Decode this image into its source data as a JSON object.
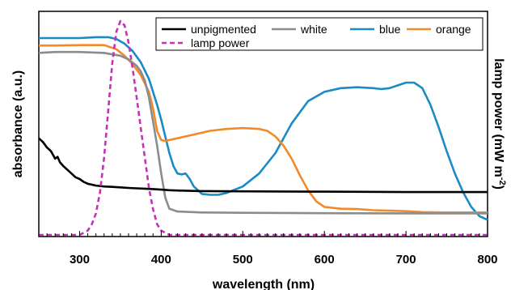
{
  "chart_data": {
    "type": "line",
    "title": "",
    "xlabel": "wavelength (nm)",
    "ylabel_left": "absorbance (a.u.)",
    "ylabel_right_main": "lamp power (mW m",
    "ylabel_right_sup": "-2",
    "ylabel_right_end": ")",
    "xlim": [
      250,
      800
    ],
    "ylim": [
      0,
      1
    ],
    "x_ticks": [
      300,
      400,
      500,
      600,
      700,
      800
    ],
    "x_tick_labels": [
      "300",
      "400",
      "500",
      "600",
      "700",
      "800"
    ],
    "y_tick_labels_shown": false,
    "legend_placement": "top-right",
    "series": [
      {
        "name": "unpigmented",
        "color": "#000000",
        "dash": "solid",
        "x": [
          250,
          255,
          260,
          265,
          270,
          273,
          276,
          280,
          285,
          290,
          295,
          300,
          305,
          310,
          320,
          330,
          340,
          350,
          360,
          370,
          380,
          390,
          400,
          410,
          420,
          450,
          500,
          550,
          600,
          650,
          700,
          750,
          800
        ],
        "y": [
          0.46,
          0.44,
          0.41,
          0.39,
          0.35,
          0.36,
          0.33,
          0.31,
          0.29,
          0.27,
          0.25,
          0.24,
          0.225,
          0.215,
          0.205,
          0.2,
          0.198,
          0.195,
          0.192,
          0.19,
          0.188,
          0.186,
          0.183,
          0.18,
          0.178,
          0.175,
          0.174,
          0.173,
          0.172,
          0.171,
          0.17,
          0.17,
          0.17
        ]
      },
      {
        "name": "white",
        "color": "#8c8c8c",
        "dash": "solid",
        "x": [
          250,
          270,
          300,
          330,
          350,
          360,
          370,
          375,
          380,
          385,
          390,
          395,
          400,
          405,
          410,
          420,
          450,
          500,
          600,
          700,
          800
        ],
        "y": [
          0.92,
          0.925,
          0.925,
          0.92,
          0.905,
          0.885,
          0.85,
          0.82,
          0.77,
          0.68,
          0.55,
          0.42,
          0.27,
          0.14,
          0.08,
          0.065,
          0.06,
          0.058,
          0.056,
          0.055,
          0.055
        ]
      },
      {
        "name": "blue",
        "color": "#1a8bc5",
        "dash": "solid",
        "x": [
          250,
          270,
          300,
          320,
          335,
          345,
          355,
          365,
          375,
          385,
          395,
          400,
          405,
          410,
          415,
          420,
          425,
          430,
          435,
          440,
          450,
          460,
          470,
          480,
          500,
          520,
          540,
          560,
          580,
          600,
          620,
          640,
          660,
          670,
          680,
          690,
          700,
          710,
          720,
          730,
          740,
          750,
          760,
          770,
          780,
          790,
          800
        ],
        "y": [
          1.0,
          1.0,
          1.0,
          1.005,
          1.005,
          0.995,
          0.97,
          0.93,
          0.87,
          0.78,
          0.64,
          0.56,
          0.47,
          0.38,
          0.31,
          0.27,
          0.265,
          0.27,
          0.24,
          0.2,
          0.16,
          0.155,
          0.155,
          0.165,
          0.2,
          0.27,
          0.38,
          0.54,
          0.66,
          0.71,
          0.73,
          0.735,
          0.73,
          0.725,
          0.73,
          0.745,
          0.76,
          0.76,
          0.73,
          0.64,
          0.52,
          0.39,
          0.27,
          0.17,
          0.09,
          0.04,
          0.02
        ]
      },
      {
        "name": "orange",
        "color": "#f28a2c",
        "dash": "solid",
        "x": [
          250,
          270,
          300,
          330,
          345,
          355,
          365,
          375,
          385,
          390,
          395,
          400,
          405,
          410,
          420,
          440,
          460,
          480,
          500,
          520,
          530,
          540,
          550,
          560,
          570,
          580,
          590,
          600,
          620,
          640,
          660,
          680,
          700,
          720,
          750,
          780,
          800
        ],
        "y": [
          0.96,
          0.96,
          0.962,
          0.962,
          0.94,
          0.905,
          0.86,
          0.8,
          0.71,
          0.62,
          0.5,
          0.45,
          0.445,
          0.45,
          0.46,
          0.48,
          0.5,
          0.51,
          0.515,
          0.51,
          0.5,
          0.47,
          0.42,
          0.35,
          0.26,
          0.18,
          0.12,
          0.09,
          0.08,
          0.078,
          0.072,
          0.07,
          0.067,
          0.062,
          0.06,
          0.06,
          0.06
        ]
      },
      {
        "name": "lamp power",
        "color": "#c531b8",
        "dash": "dashed",
        "x": [
          250,
          280,
          300,
          310,
          315,
          320,
          325,
          330,
          335,
          340,
          345,
          350,
          355,
          360,
          365,
          370,
          375,
          380,
          385,
          390,
          395,
          400,
          405,
          410,
          430,
          500,
          600,
          700,
          800
        ],
        "y": [
          0,
          0,
          0,
          0.02,
          0.05,
          0.1,
          0.2,
          0.36,
          0.58,
          0.8,
          0.95,
          1.0,
          0.98,
          0.9,
          0.78,
          0.64,
          0.5,
          0.36,
          0.22,
          0.12,
          0.05,
          0.02,
          0.01,
          0,
          0,
          0,
          0,
          0,
          0
        ]
      }
    ]
  }
}
